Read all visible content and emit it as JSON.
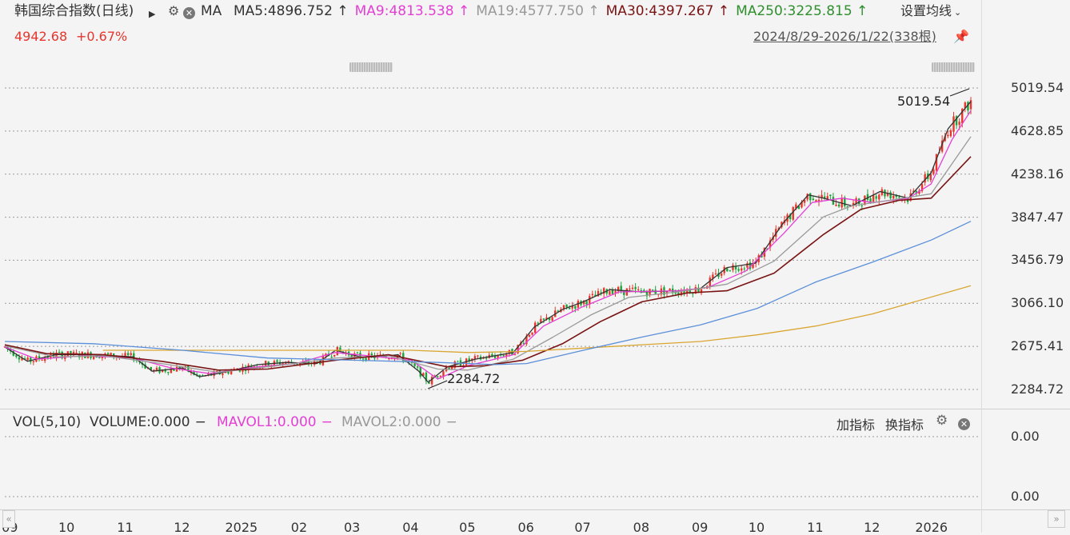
{
  "header": {
    "title": "韩国综合指数(日线)",
    "play_icon": "play-icon",
    "ma_label": "MA",
    "ma_legend": [
      {
        "label": "MA5:4896.752",
        "color": "#333333",
        "arrow": "↑"
      },
      {
        "label": "MA9:4813.538",
        "color": "#e43fd4",
        "arrow": "↑"
      },
      {
        "label": "MA19:4577.750",
        "color": "#999999",
        "arrow": "↑"
      },
      {
        "label": "MA30:4397.267",
        "color": "#7a1414",
        "arrow": "↑"
      },
      {
        "label": "MA250:3225.815",
        "color": "#2f8f2f",
        "arrow": "↑"
      }
    ],
    "settings_label": "设置均线",
    "price": "4942.68",
    "change": "+0.67%",
    "range": "2024/8/29-2026/1/22(338根)"
  },
  "colors": {
    "up": "#e8352d",
    "down": "#1aa33a",
    "ma5": "#333333",
    "ma9": "#e43fd4",
    "ma19": "#9a9a9a",
    "ma30": "#7a1414",
    "ma_blue": "#5b8fd9",
    "ma250": "#d9a632"
  },
  "chart_data": {
    "type": "line",
    "title": "韩国综合指数(日线)",
    "y_axis_labels": [
      "5019.54",
      "4628.85",
      "4238.16",
      "3847.47",
      "3456.79",
      "3066.10",
      "2675.41",
      "2284.72"
    ],
    "ylim": [
      2284.72,
      5019.54
    ],
    "x_axis_labels": [
      "09",
      "10",
      "11",
      "12",
      "2025",
      "02",
      "03",
      "04",
      "05",
      "06",
      "07",
      "08",
      "09",
      "10",
      "11",
      "12",
      "2026"
    ],
    "x_axis_months": [
      "2024-09",
      "2024-10",
      "2024-11",
      "2024-12",
      "2025-01",
      "2025-02",
      "2025-03",
      "2025-04",
      "2025-05",
      "2025-06",
      "2025-07",
      "2025-08",
      "2025-09",
      "2025-10",
      "2025-11",
      "2025-12",
      "2026-01"
    ],
    "high_annotation": {
      "date": "2026-01-22",
      "label": "5019.54"
    },
    "low_annotation": {
      "date": "2025-04-09",
      "label": "2284.72"
    },
    "grid": true,
    "series": [
      {
        "name": "MA5",
        "color": "#333333",
        "points": [
          [
            "2024-08-29",
            2670
          ],
          [
            "2024-09-10",
            2540
          ],
          [
            "2024-09-25",
            2600
          ],
          [
            "2024-10-15",
            2600
          ],
          [
            "2024-11-05",
            2580
          ],
          [
            "2024-11-15",
            2450
          ],
          [
            "2024-12-01",
            2480
          ],
          [
            "2024-12-10",
            2400
          ],
          [
            "2024-12-20",
            2430
          ],
          [
            "2025-01-10",
            2510
          ],
          [
            "2025-01-25",
            2530
          ],
          [
            "2025-02-10",
            2520
          ],
          [
            "2025-02-20",
            2640
          ],
          [
            "2025-03-05",
            2580
          ],
          [
            "2025-03-15",
            2580
          ],
          [
            "2025-03-25",
            2600
          ],
          [
            "2025-04-05",
            2450
          ],
          [
            "2025-04-10",
            2350
          ],
          [
            "2025-04-20",
            2490
          ],
          [
            "2025-05-05",
            2560
          ],
          [
            "2025-05-25",
            2620
          ],
          [
            "2025-06-05",
            2850
          ],
          [
            "2025-06-20",
            3010
          ],
          [
            "2025-07-01",
            3080
          ],
          [
            "2025-07-15",
            3190
          ],
          [
            "2025-08-01",
            3170
          ],
          [
            "2025-08-20",
            3180
          ],
          [
            "2025-09-01",
            3200
          ],
          [
            "2025-09-15",
            3390
          ],
          [
            "2025-09-30",
            3430
          ],
          [
            "2025-10-15",
            3800
          ],
          [
            "2025-10-28",
            4050
          ],
          [
            "2025-11-05",
            4020
          ],
          [
            "2025-11-20",
            3950
          ],
          [
            "2025-12-05",
            4080
          ],
          [
            "2025-12-20",
            4020
          ],
          [
            "2026-01-01",
            4250
          ],
          [
            "2026-01-10",
            4650
          ],
          [
            "2026-01-22",
            4896.752
          ]
        ]
      },
      {
        "name": "MA9",
        "color": "#e43fd4",
        "points": [
          [
            "2024-08-29",
            2670
          ],
          [
            "2024-09-15",
            2560
          ],
          [
            "2024-10-10",
            2590
          ],
          [
            "2024-11-05",
            2570
          ],
          [
            "2024-11-25",
            2480
          ],
          [
            "2024-12-15",
            2430
          ],
          [
            "2025-01-10",
            2490
          ],
          [
            "2025-01-30",
            2520
          ],
          [
            "2025-02-20",
            2620
          ],
          [
            "2025-03-15",
            2580
          ],
          [
            "2025-04-01",
            2550
          ],
          [
            "2025-04-15",
            2380
          ],
          [
            "2025-05-01",
            2500
          ],
          [
            "2025-05-25",
            2600
          ],
          [
            "2025-06-10",
            2860
          ],
          [
            "2025-06-30",
            3030
          ],
          [
            "2025-07-20",
            3170
          ],
          [
            "2025-08-20",
            3180
          ],
          [
            "2025-09-05",
            3210
          ],
          [
            "2025-09-25",
            3360
          ],
          [
            "2025-10-15",
            3700
          ],
          [
            "2025-10-30",
            3980
          ],
          [
            "2025-11-15",
            4020
          ],
          [
            "2025-12-01",
            3980
          ],
          [
            "2025-12-20",
            4020
          ],
          [
            "2026-01-01",
            4150
          ],
          [
            "2026-01-12",
            4550
          ],
          [
            "2026-01-22",
            4813.538
          ]
        ]
      },
      {
        "name": "MA19",
        "color": "#9a9a9a",
        "points": [
          [
            "2024-08-29",
            2680
          ],
          [
            "2024-09-25",
            2580
          ],
          [
            "2024-10-20",
            2590
          ],
          [
            "2024-11-20",
            2520
          ],
          [
            "2024-12-20",
            2440
          ],
          [
            "2025-01-20",
            2500
          ],
          [
            "2025-02-20",
            2570
          ],
          [
            "2025-03-20",
            2590
          ],
          [
            "2025-04-15",
            2470
          ],
          [
            "2025-05-01",
            2460
          ],
          [
            "2025-05-25",
            2560
          ],
          [
            "2025-06-15",
            2760
          ],
          [
            "2025-07-05",
            2960
          ],
          [
            "2025-07-25",
            3120
          ],
          [
            "2025-08-20",
            3170
          ],
          [
            "2025-09-15",
            3240
          ],
          [
            "2025-10-10",
            3450
          ],
          [
            "2025-11-05",
            3850
          ],
          [
            "2025-11-20",
            3950
          ],
          [
            "2025-12-10",
            4000
          ],
          [
            "2026-01-01",
            4060
          ],
          [
            "2026-01-22",
            4577.75
          ]
        ]
      },
      {
        "name": "MA30",
        "color": "#7a1414",
        "points": [
          [
            "2024-08-29",
            2690
          ],
          [
            "2024-09-20",
            2610
          ],
          [
            "2024-10-20",
            2600
          ],
          [
            "2024-11-20",
            2540
          ],
          [
            "2024-12-20",
            2460
          ],
          [
            "2025-01-15",
            2470
          ],
          [
            "2025-02-20",
            2550
          ],
          [
            "2025-03-20",
            2600
          ],
          [
            "2025-04-20",
            2490
          ],
          [
            "2025-05-10",
            2500
          ],
          [
            "2025-05-30",
            2550
          ],
          [
            "2025-06-20",
            2700
          ],
          [
            "2025-07-10",
            2900
          ],
          [
            "2025-08-01",
            3080
          ],
          [
            "2025-08-25",
            3160
          ],
          [
            "2025-09-15",
            3180
          ],
          [
            "2025-10-10",
            3340
          ],
          [
            "2025-11-05",
            3690
          ],
          [
            "2025-11-25",
            3920
          ],
          [
            "2025-12-15",
            4000
          ],
          [
            "2026-01-01",
            4020
          ],
          [
            "2026-01-22",
            4397.267
          ]
        ]
      },
      {
        "name": "MA250",
        "color": "#d9a632",
        "points": [
          [
            "2024-10-20",
            2640
          ],
          [
            "2025-01-15",
            2640
          ],
          [
            "2025-04-01",
            2640
          ],
          [
            "2025-05-01",
            2620
          ],
          [
            "2025-06-01",
            2630
          ],
          [
            "2025-07-01",
            2660
          ],
          [
            "2025-08-01",
            2690
          ],
          [
            "2025-09-01",
            2720
          ],
          [
            "2025-10-01",
            2780
          ],
          [
            "2025-11-01",
            2860
          ],
          [
            "2025-12-01",
            2970
          ],
          [
            "2026-01-22",
            3225.815
          ]
        ]
      },
      {
        "color": "#5b8fd9",
        "points": [
          [
            "2024-08-29",
            2720
          ],
          [
            "2024-10-15",
            2700
          ],
          [
            "2024-12-01",
            2640
          ],
          [
            "2025-01-15",
            2570
          ],
          [
            "2025-03-01",
            2550
          ],
          [
            "2025-04-15",
            2530
          ],
          [
            "2025-05-15",
            2510
          ],
          [
            "2025-06-01",
            2520
          ],
          [
            "2025-07-01",
            2640
          ],
          [
            "2025-08-01",
            2760
          ],
          [
            "2025-09-01",
            2870
          ],
          [
            "2025-10-01",
            3020
          ],
          [
            "2025-11-01",
            3260
          ],
          [
            "2025-12-01",
            3440
          ],
          [
            "2026-01-01",
            3640
          ],
          [
            "2026-01-22",
            3810
          ]
        ]
      }
    ]
  },
  "volume_panel": {
    "label": "VOL(5,10)",
    "volume": "VOLUME:0.000",
    "mavol1": "MAVOL1:0.000",
    "mavol2": "MAVOL2:0.000",
    "add_indicator": "加指标",
    "switch_indicator": "换指标",
    "y_labels": [
      "0.00",
      "0.00"
    ]
  }
}
